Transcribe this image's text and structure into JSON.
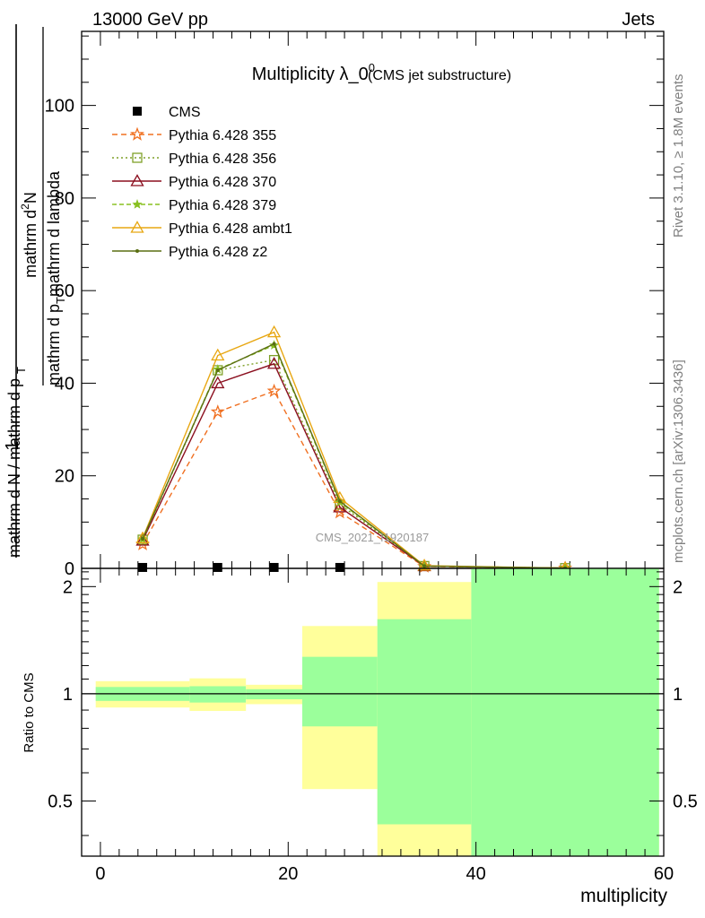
{
  "header": {
    "energy_label": "13000 GeV pp",
    "type_label": "Jets"
  },
  "side_labels": {
    "rivet": "Rivet 3.1.10, ≥ 1.8M events",
    "mcplots": "mcplots.cern.ch [arXiv:1306.3436]"
  },
  "watermark": "CMS_2021_I1920187",
  "chart_data": [
    {
      "type": "line",
      "title": "Multiplicity λ_0",
      "title_sup": "0",
      "subtitle": "(CMS jet substructure)",
      "ylabel_numerator": "1",
      "ylabel_denominator": "mathrm d N / mathrm d p",
      "ylabel_denominator_tail": "mathrm d lambda",
      "ylabel_d2": "mathrm d",
      "ylabel_d2_sup": "2",
      "ylabel_d2_n": "N",
      "ylabel_sub": "T",
      "xlim": [
        -2,
        60
      ],
      "ylim": [
        0,
        116
      ],
      "yticks": [
        0,
        20,
        40,
        60,
        80,
        100
      ],
      "x": [
        4.5,
        12.5,
        18.5,
        25.5,
        34.5,
        49.5
      ],
      "data": {
        "name": "CMS",
        "values": [
          0.2,
          0.2,
          0.2,
          0.2,
          0.0,
          0.0
        ]
      },
      "series": [
        {
          "name": "Pythia 6.428 355",
          "color": "#f07021",
          "dash": "6,4",
          "marker": "star",
          "values": [
            5.2,
            33.8,
            38.3,
            12.1,
            0.4,
            0.05
          ]
        },
        {
          "name": "Pythia 6.428 356",
          "color": "#7fa028",
          "dash": "2,3",
          "marker": "square",
          "values": [
            6.2,
            42.8,
            45.0,
            13.8,
            0.5,
            0.05
          ]
        },
        {
          "name": "Pythia 6.428 370",
          "color": "#8b0f1f",
          "dash": "",
          "marker": "triangle",
          "values": [
            6.0,
            40.0,
            44.2,
            13.2,
            0.5,
            0.05
          ]
        },
        {
          "name": "Pythia 6.428 379",
          "color": "#88c020",
          "dash": "5,3",
          "marker": "star-small",
          "values": [
            6.3,
            43.0,
            48.2,
            14.3,
            0.5,
            0.05
          ]
        },
        {
          "name": "Pythia 6.428 ambt1",
          "color": "#e8a712",
          "dash": "",
          "marker": "triangle",
          "values": [
            6.5,
            46.0,
            51.0,
            15.2,
            0.6,
            0.05
          ]
        },
        {
          "name": "Pythia 6.428 z2",
          "color": "#5a6e12",
          "dash": "",
          "marker": "dot",
          "values": [
            6.4,
            42.8,
            48.5,
            14.5,
            0.5,
            0.05
          ]
        }
      ]
    },
    {
      "type": "area",
      "ylabel": "Ratio to CMS",
      "xlabel": "multiplicity",
      "xlim": [
        -2,
        60
      ],
      "ylim": [
        0.35,
        2.25
      ],
      "log_y": true,
      "yticks": [
        0.5,
        1,
        2
      ],
      "xticks": [
        0,
        20,
        40,
        60
      ],
      "bins": [
        {
          "x0": -0.5,
          "x1": 9.5,
          "stat_lo": 0.955,
          "stat_hi": 1.045,
          "tot_lo": 0.915,
          "tot_hi": 1.085
        },
        {
          "x0": 9.5,
          "x1": 15.5,
          "stat_lo": 0.945,
          "stat_hi": 1.05,
          "tot_lo": 0.895,
          "tot_hi": 1.105
        },
        {
          "x0": 15.5,
          "x1": 21.5,
          "stat_lo": 0.965,
          "stat_hi": 1.03,
          "tot_lo": 0.935,
          "tot_hi": 1.06
        },
        {
          "x0": 21.5,
          "x1": 29.5,
          "stat_lo": 0.81,
          "stat_hi": 1.27,
          "tot_lo": 0.54,
          "tot_hi": 1.55
        },
        {
          "x0": 29.5,
          "x1": 39.5,
          "stat_lo": 0.43,
          "stat_hi": 1.62,
          "tot_lo": 0.35,
          "tot_hi": 2.06
        },
        {
          "x0": 39.5,
          "x1": 59.5,
          "stat_lo": 0.35,
          "stat_hi": 2.25,
          "tot_lo": 0.35,
          "tot_hi": 2.25
        }
      ]
    }
  ]
}
